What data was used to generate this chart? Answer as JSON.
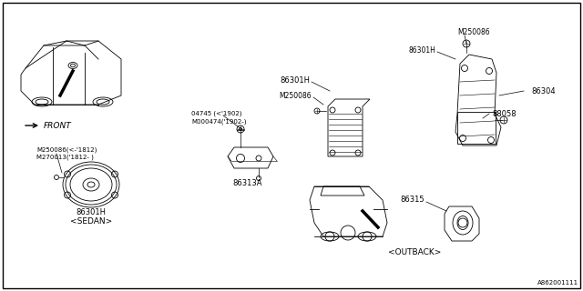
{
  "bg_color": "#ffffff",
  "border_color": "#000000",
  "diagram_id": "A862001111",
  "parts": {
    "sedan_speaker_label": "86301H",
    "bolt_label1": "M250086〈-‘1812〉",
    "bolt_label2": "M270013〈‘1812-〉",
    "bracket_label": "86313A",
    "bracket_bolt1": "04745 (<'1902)",
    "bracket_bolt2": "M000474('1902-)",
    "sub_left_m": "M250086",
    "sub_left_label": "86301H",
    "sub_right_label": "86304",
    "sub_right_sub": "88058",
    "m_top": "M250086",
    "outback_speaker": "86315",
    "sedan_tag": "<SEDAN>",
    "outback_tag": "<OUTBACK>",
    "front_label": "FRONT"
  },
  "lw": 0.6,
  "fs": 5.5
}
